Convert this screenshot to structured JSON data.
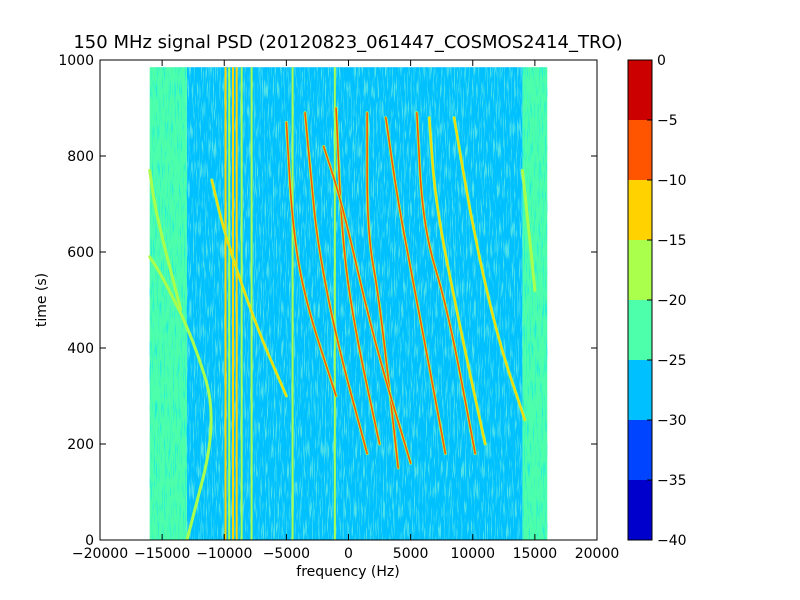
{
  "chart_data": {
    "type": "heatmap",
    "title": "150 MHz signal PSD (20120823_061447_COSMOS2414_TRO)",
    "xlabel": "frequency (Hz)",
    "ylabel": "time (s)",
    "xlim": [
      -20000,
      20000
    ],
    "ylim": [
      0,
      1000
    ],
    "xticks": [
      -20000,
      -15000,
      -10000,
      -5000,
      0,
      5000,
      10000,
      15000,
      20000
    ],
    "yticks": [
      0,
      200,
      400,
      600,
      800,
      1000
    ],
    "data_extent": {
      "x": [
        -16000,
        16000
      ],
      "y": [
        0,
        985
      ]
    },
    "colorbar": {
      "range": [
        -40,
        0
      ],
      "ticks": [
        0,
        -5,
        -10,
        -15,
        -20,
        -25,
        -30,
        -35,
        -40
      ],
      "levels": [
        {
          "from": -40,
          "to": -35,
          "color": "#0000cc"
        },
        {
          "from": -35,
          "to": -30,
          "color": "#0044ff"
        },
        {
          "from": -30,
          "to": -25,
          "color": "#00c0ff"
        },
        {
          "from": -25,
          "to": -20,
          "color": "#4dffaa"
        },
        {
          "from": -20,
          "to": -15,
          "color": "#aaff4d"
        },
        {
          "from": -15,
          "to": -10,
          "color": "#ffd200"
        },
        {
          "from": -10,
          "to": -5,
          "color": "#ff5500"
        },
        {
          "from": -5,
          "to": 0,
          "color": "#cc0000"
        }
      ]
    },
    "background_regions": [
      {
        "x": [
          -16000,
          -13000
        ],
        "level": -22.5
      },
      {
        "x": [
          -13000,
          14000
        ],
        "level": -27.5,
        "note_level": -22.5
      },
      {
        "x": [
          14000,
          16000
        ],
        "level": -22.5
      }
    ],
    "vertical_lines": [
      {
        "x": -9900,
        "level": -15
      },
      {
        "x": -9600,
        "level": -17
      },
      {
        "x": -9300,
        "level": -15
      },
      {
        "x": -9000,
        "level": -15
      },
      {
        "x": -8600,
        "level": -17
      },
      {
        "x": -7800,
        "level": -17
      },
      {
        "x": -4500,
        "level": -17
      },
      {
        "x": -1100,
        "level": -17
      }
    ],
    "doppler_tracks": [
      {
        "level": -17,
        "points": [
          [
            -13000,
            0
          ],
          [
            -10500,
            250
          ],
          [
            -12500,
            420
          ],
          [
            -15000,
            550
          ],
          [
            -16000,
            590
          ]
        ]
      },
      {
        "level": -17,
        "points": [
          [
            -13500,
            480
          ],
          [
            -15500,
            680
          ],
          [
            -16000,
            770
          ]
        ]
      },
      {
        "level": -12,
        "points": [
          [
            -5000,
            300
          ],
          [
            -7500,
            450
          ],
          [
            -10000,
            640
          ],
          [
            -11000,
            750
          ]
        ]
      },
      {
        "level": -10,
        "points": [
          [
            -1000,
            300
          ],
          [
            -3500,
            500
          ],
          [
            -4500,
            650
          ],
          [
            -5000,
            870
          ]
        ]
      },
      {
        "level": -7,
        "points": [
          [
            1500,
            180
          ],
          [
            -1000,
            420
          ],
          [
            -2500,
            620
          ],
          [
            -3000,
            750
          ],
          [
            -3500,
            890
          ]
        ]
      },
      {
        "level": -7,
        "points": [
          [
            2500,
            200
          ],
          [
            500,
            440
          ],
          [
            -500,
            620
          ],
          [
            -1000,
            900
          ]
        ]
      },
      {
        "level": -7,
        "points": [
          [
            4000,
            150
          ],
          [
            2500,
            500
          ],
          [
            1500,
            640
          ],
          [
            1500,
            890
          ]
        ]
      },
      {
        "level": -10,
        "points": [
          [
            5000,
            160
          ],
          [
            2000,
            420
          ],
          [
            -500,
            700
          ],
          [
            -2000,
            820
          ]
        ]
      },
      {
        "level": -10,
        "points": [
          [
            7800,
            180
          ],
          [
            5500,
            500
          ],
          [
            4000,
            700
          ],
          [
            3000,
            880
          ]
        ]
      },
      {
        "level": -10,
        "points": [
          [
            10200,
            180
          ],
          [
            8000,
            480
          ],
          [
            6000,
            650
          ],
          [
            5500,
            890
          ]
        ]
      },
      {
        "level": -12,
        "points": [
          [
            11000,
            200
          ],
          [
            9000,
            440
          ],
          [
            7000,
            700
          ],
          [
            6500,
            880
          ]
        ]
      },
      {
        "level": -15,
        "points": [
          [
            14200,
            250
          ],
          [
            12000,
            420
          ],
          [
            10000,
            650
          ],
          [
            8500,
            880
          ]
        ]
      },
      {
        "level": -17,
        "points": [
          [
            15000,
            520
          ],
          [
            14500,
            650
          ],
          [
            14000,
            770
          ]
        ]
      }
    ]
  }
}
